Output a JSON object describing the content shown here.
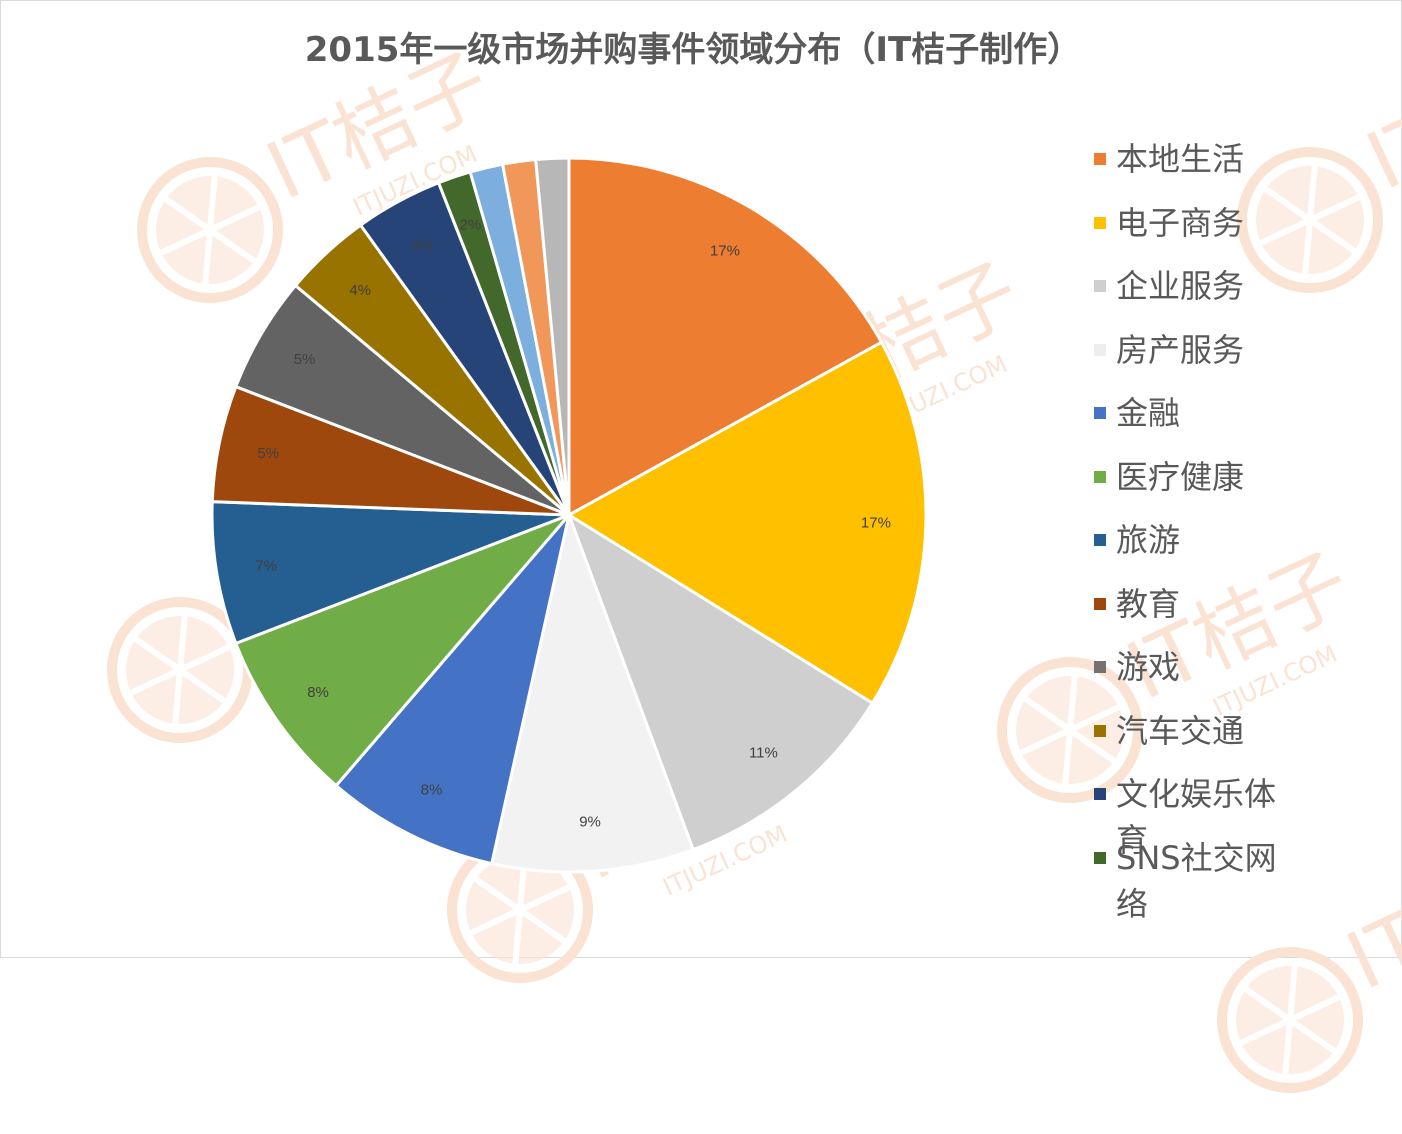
{
  "chart_data": {
    "type": "pie",
    "title": "2015年一级市场并购事件领域分布（IT桔子制作）",
    "start_angle_deg": 0,
    "direction": "clockwise",
    "legend_position": "right",
    "categories": [
      "本地生活",
      "电子商务",
      "企业服务",
      "房产服务",
      "金融",
      "医疗健康",
      "旅游",
      "教育",
      "游戏",
      "汽车交通",
      "文化娱乐体育",
      "SNS社交网络",
      "",
      "",
      ""
    ],
    "values": [
      17.1,
      17.0,
      10.6,
      9.2,
      7.9,
      7.9,
      6.5,
      5.3,
      5.3,
      4.0,
      4.0,
      1.5,
      1.5,
      1.5,
      1.5
    ],
    "data_labels": [
      "17%",
      "17%",
      "11%",
      "9%",
      "8%",
      "8%",
      "7%",
      "5%",
      "5%",
      "4%",
      "4%",
      "2%",
      "",
      "",
      ""
    ],
    "colors": [
      "#ED7D31",
      "#FFC000",
      "#CFCFCF",
      "#F2F2F2",
      "#4472C4",
      "#70AD47",
      "#255E91",
      "#9E480E",
      "#636363",
      "#997300",
      "#264478",
      "#43682B",
      "#7CAFDD",
      "#F1975A",
      "#B7B7B7"
    ]
  },
  "legend": {
    "items": [
      {
        "label": "本地生活",
        "color": "#ED7D31"
      },
      {
        "label": "电子商务",
        "color": "#FFC000"
      },
      {
        "label": "企业服务",
        "color": "#CFCFCF"
      },
      {
        "label": "房产服务",
        "color": "#EEEEEE"
      },
      {
        "label": "金融",
        "color": "#4472C4"
      },
      {
        "label": "医疗健康",
        "color": "#70AD47"
      },
      {
        "label": "旅游",
        "color": "#255E91"
      },
      {
        "label": "教育",
        "color": "#9E480E"
      },
      {
        "label": "游戏",
        "color": "#767171"
      },
      {
        "label": "汽车交通",
        "color": "#997300"
      },
      {
        "label": "文化娱乐体育",
        "color": "#264478"
      },
      {
        "label": "SNS社交网络",
        "color": "#43682B"
      }
    ]
  },
  "watermark": {
    "text": "IT桔子",
    "sub": "ITJUZI.COM",
    "color": "#FBE3D4"
  }
}
